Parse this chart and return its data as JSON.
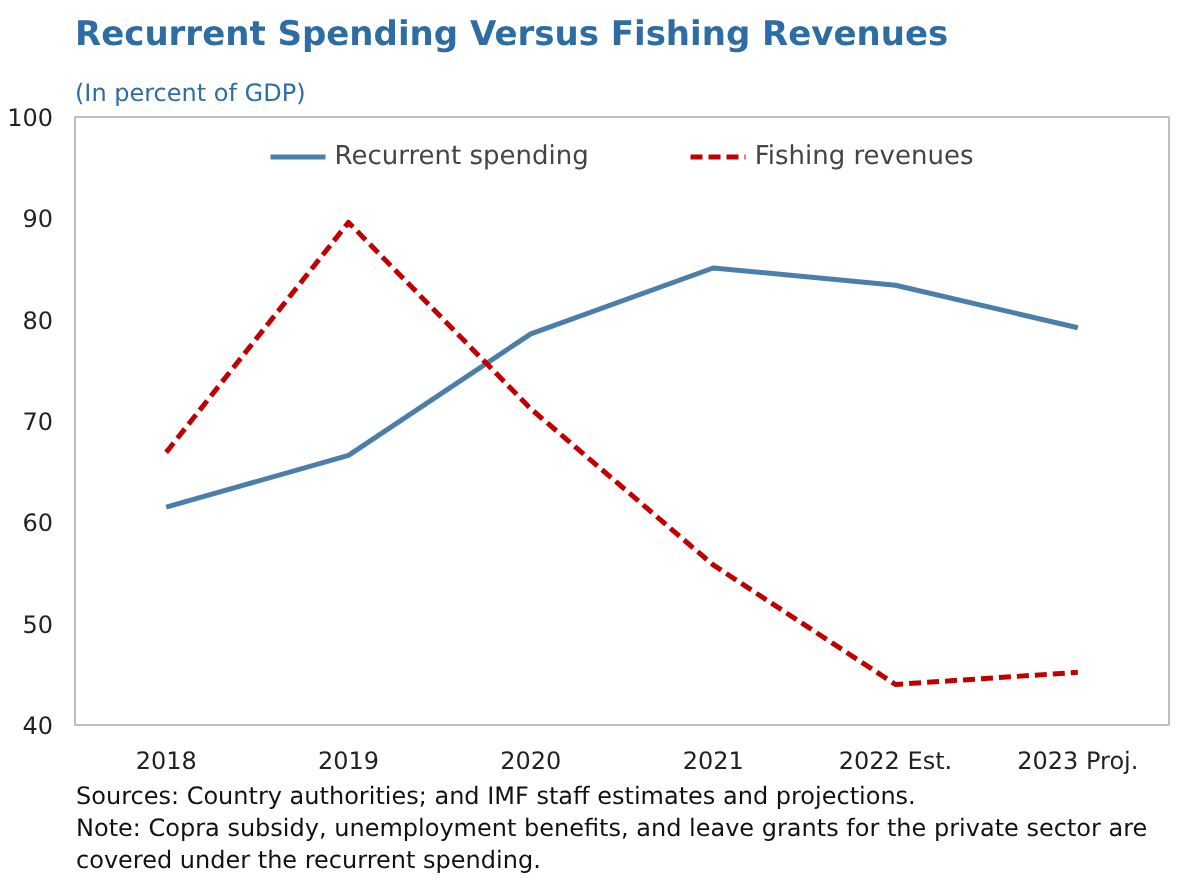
{
  "chart_data": {
    "type": "line",
    "title": "Recurrent Spending Versus Fishing Revenues",
    "subtitle": "(In percent of  GDP)",
    "categories": [
      "2018",
      "2019",
      "2020",
      "2021",
      "2022 Est.",
      "2023 Proj."
    ],
    "series": [
      {
        "name": "Recurrent spending",
        "color": "#4a7eab",
        "line_style": "solid",
        "values": [
          61.5,
          66.6,
          78.6,
          85.1,
          83.4,
          79.2
        ]
      },
      {
        "name": "Fishing revenues",
        "color": "#c00000",
        "line_style": "dashed",
        "values": [
          66.9,
          89.6,
          71.2,
          55.8,
          44.0,
          45.2
        ]
      }
    ],
    "ylim": [
      40,
      100
    ],
    "yticks": [
      40,
      50,
      60,
      70,
      80,
      90,
      100
    ],
    "grid": false,
    "legend": "top",
    "marker": "none",
    "annotations": [
      "Sources: Country authorities; and IMF staff estimates and projections.",
      "Note: Copra subsidy, unemployment benefits, and leave grants for the private sector are covered under the recurrent spending."
    ]
  }
}
